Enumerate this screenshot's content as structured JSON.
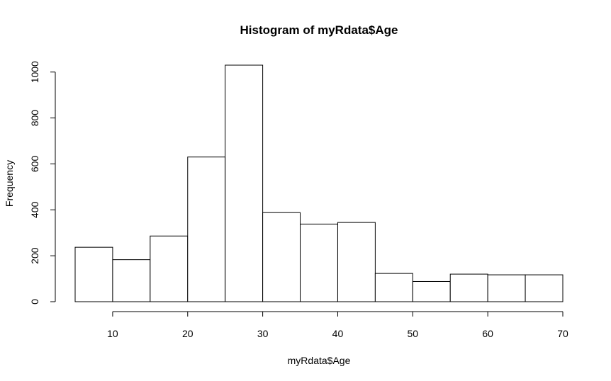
{
  "chart_data": {
    "type": "bar",
    "title": "Histogram of myRdata$Age",
    "xlabel": "myRdata$Age",
    "ylabel": "Frequency",
    "bins": [
      {
        "from": 5,
        "to": 10,
        "count": 237
      },
      {
        "from": 10,
        "to": 15,
        "count": 183
      },
      {
        "from": 15,
        "to": 20,
        "count": 286
      },
      {
        "from": 20,
        "to": 25,
        "count": 630
      },
      {
        "from": 25,
        "to": 30,
        "count": 1030
      },
      {
        "from": 30,
        "to": 35,
        "count": 388
      },
      {
        "from": 35,
        "to": 40,
        "count": 338
      },
      {
        "from": 40,
        "to": 45,
        "count": 345
      },
      {
        "from": 45,
        "to": 50,
        "count": 123
      },
      {
        "from": 50,
        "to": 55,
        "count": 88
      },
      {
        "from": 55,
        "to": 60,
        "count": 120
      },
      {
        "from": 60,
        "to": 65,
        "count": 117
      },
      {
        "from": 65,
        "to": 70,
        "count": 117
      }
    ],
    "xlim": [
      5,
      70
    ],
    "ylim": [
      0,
      1030
    ],
    "x_ticks": [
      10,
      20,
      30,
      40,
      50,
      60,
      70
    ],
    "y_ticks": [
      0,
      200,
      400,
      600,
      800,
      1000
    ],
    "grid": false,
    "legend": "none"
  }
}
